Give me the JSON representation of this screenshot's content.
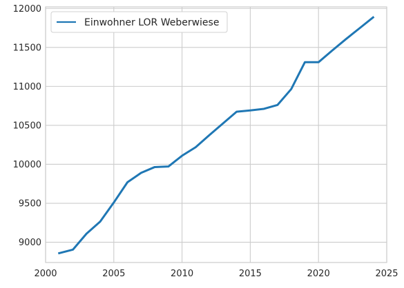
{
  "chart_data": {
    "type": "line",
    "title": "",
    "xlabel": "",
    "ylabel": "",
    "xlim": [
      2000,
      2025
    ],
    "ylim": [
      8740,
      12020
    ],
    "grid": true,
    "legend_placement": "top-left",
    "x_ticks": [
      "2000",
      "2005",
      "2010",
      "2015",
      "2020",
      "2025"
    ],
    "y_ticks": [
      "9000",
      "9500",
      "10000",
      "10500",
      "11000",
      "11500",
      "12000"
    ],
    "series": [
      {
        "name": "Einwohner LOR Weberwiese",
        "color": "#1f77b4",
        "x": [
          2001,
          2002,
          2003,
          2004,
          2005,
          2006,
          2007,
          2008,
          2009,
          2010,
          2011,
          2012,
          2013,
          2014,
          2015,
          2016,
          2017,
          2018,
          2019,
          2020,
          2021,
          2022,
          2023,
          2024
        ],
        "y": [
          8860,
          8905,
          9110,
          9265,
          9510,
          9770,
          9890,
          9965,
          9972,
          10110,
          10220,
          10375,
          10525,
          10675,
          10692,
          10712,
          10762,
          10965,
          11310,
          11310,
          11460,
          11605,
          11745,
          11885
        ]
      }
    ]
  }
}
